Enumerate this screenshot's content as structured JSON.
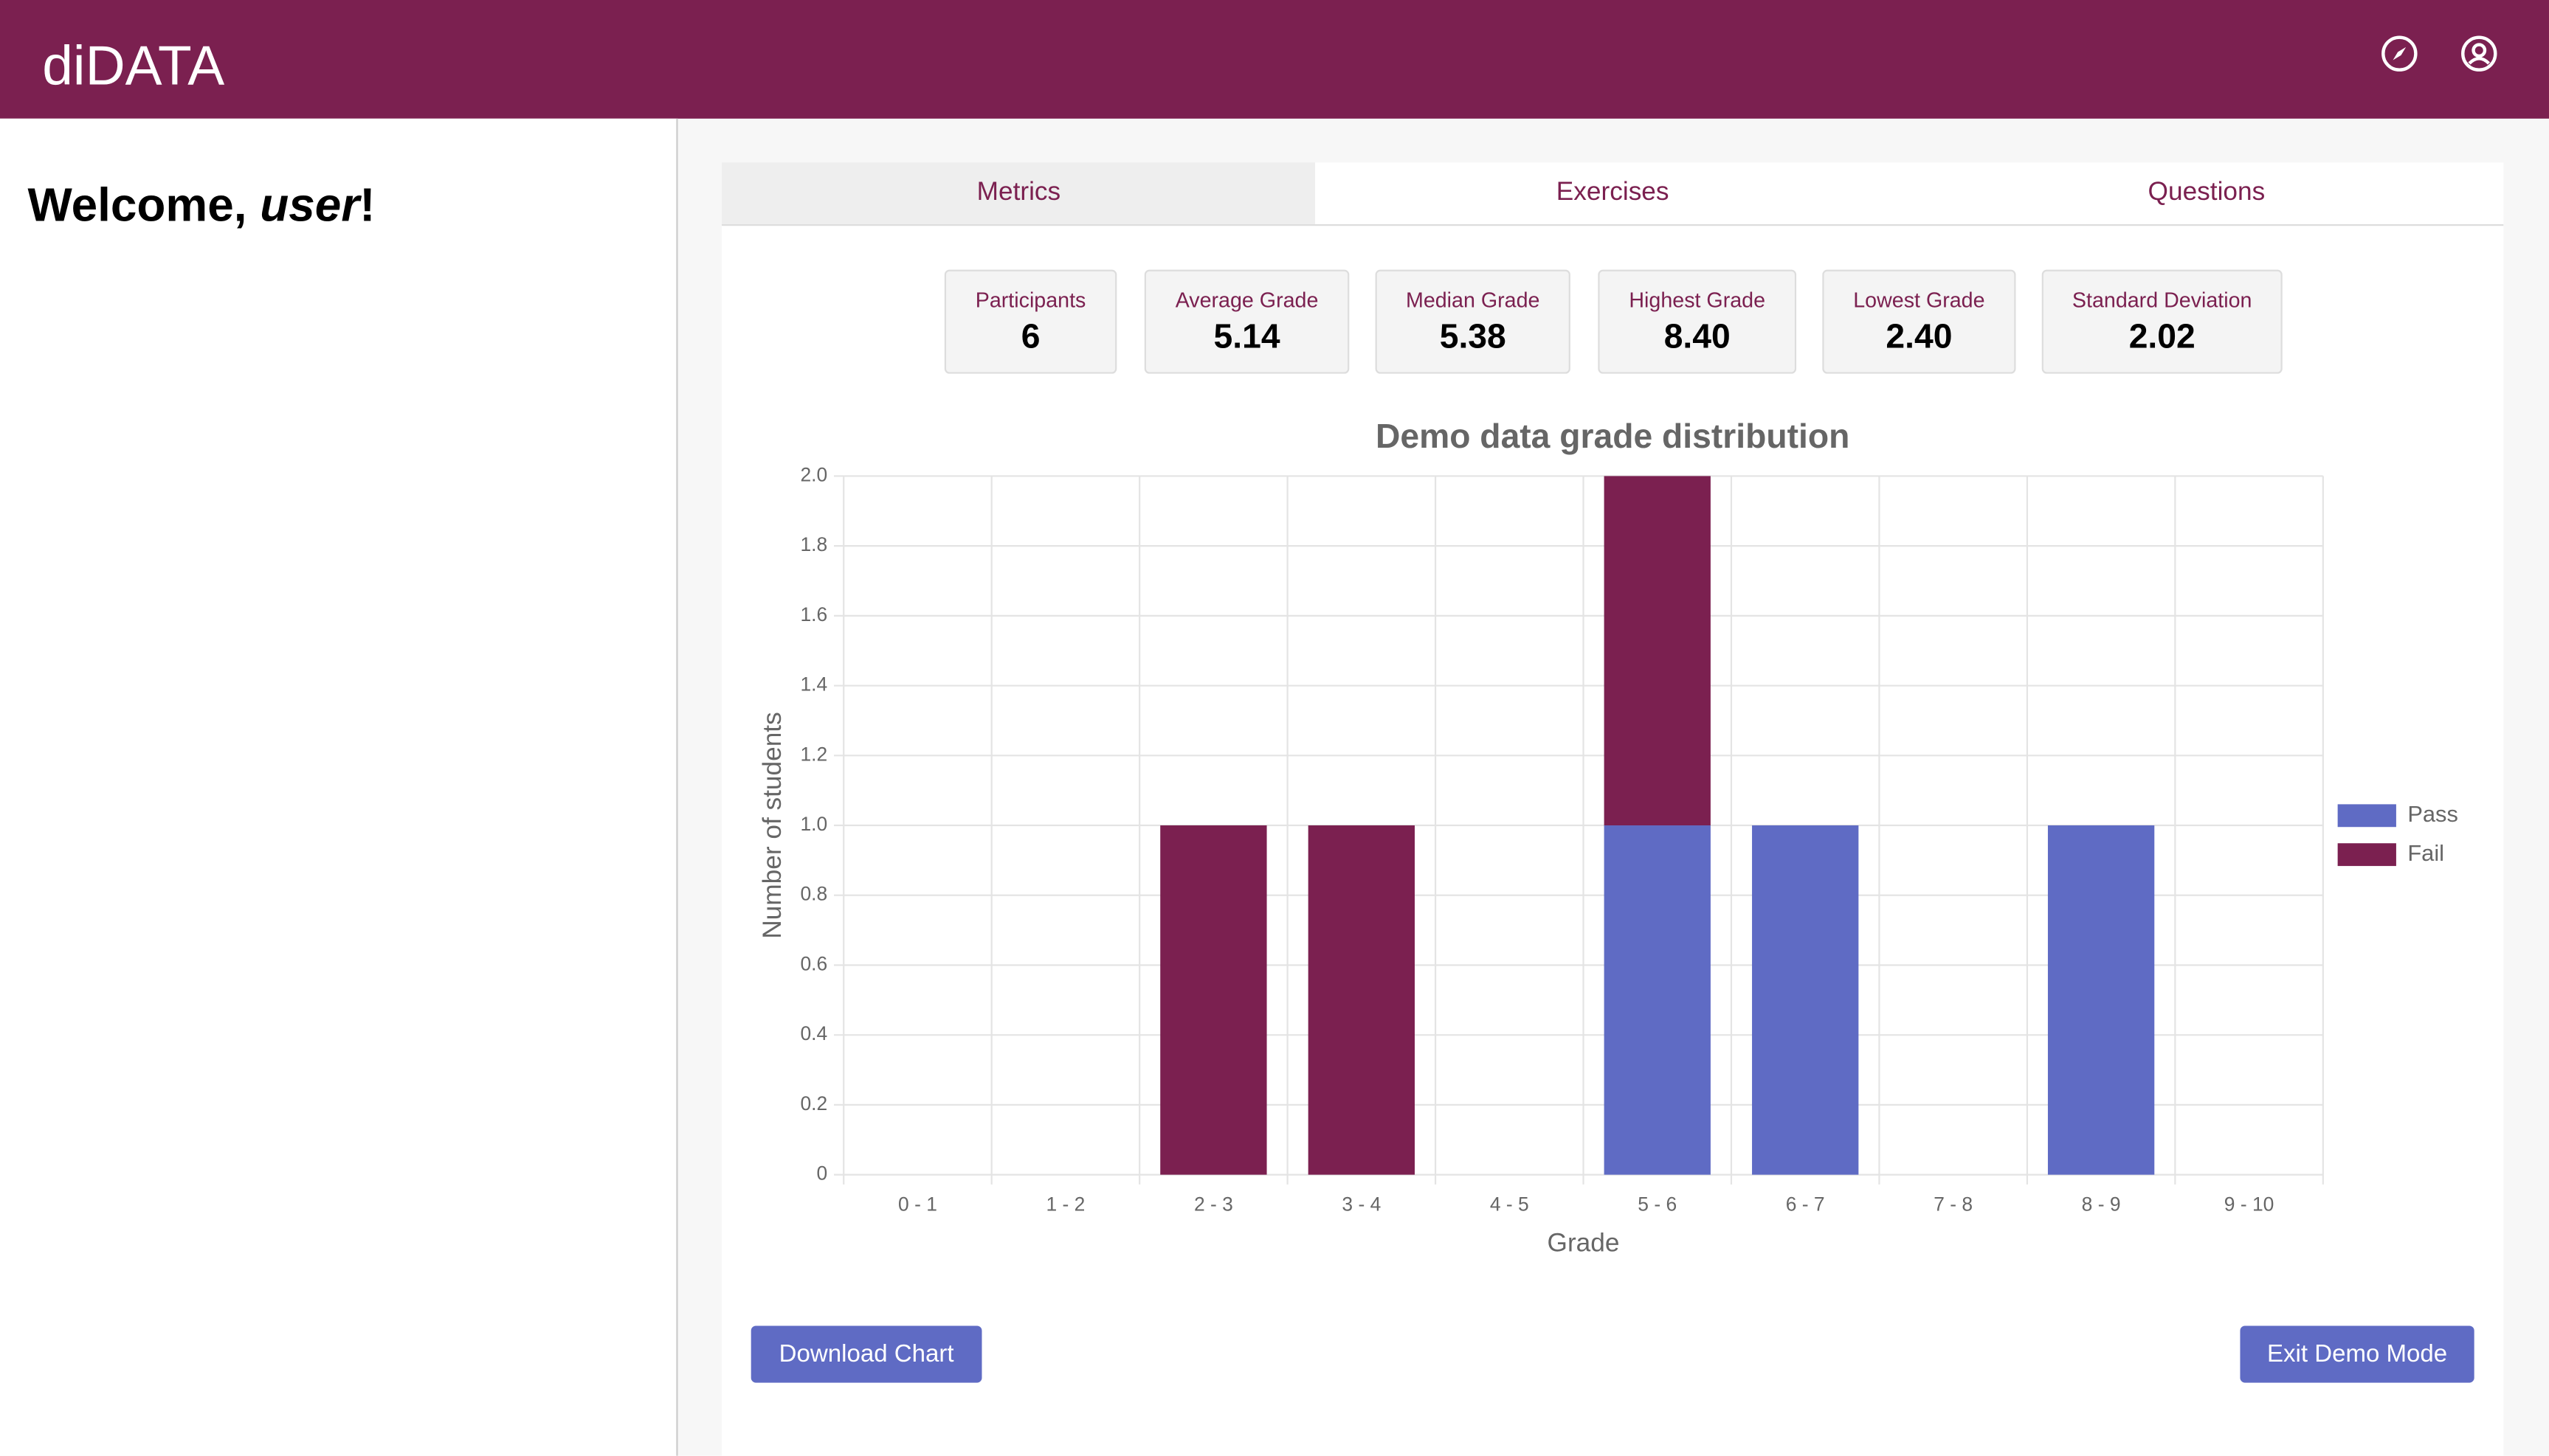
{
  "header": {
    "logo": "diDATA"
  },
  "welcome": {
    "prefix": "Welcome, ",
    "name": "user",
    "suffix": "!"
  },
  "tabs": [
    "Metrics",
    "Exercises",
    "Questions"
  ],
  "metrics": [
    {
      "label": "Participants",
      "value": "6"
    },
    {
      "label": "Average Grade",
      "value": "5.14"
    },
    {
      "label": "Median Grade",
      "value": "5.38"
    },
    {
      "label": "Highest Grade",
      "value": "8.40"
    },
    {
      "label": "Lowest Grade",
      "value": "2.40"
    },
    {
      "label": "Standard Deviation",
      "value": "2.02"
    }
  ],
  "chart_data": {
    "type": "stacked_bar",
    "title": "Demo data grade distribution",
    "x_label": "Grade",
    "y_label": "Number of students",
    "categories": [
      "0 - 1",
      "1 - 2",
      "2 - 3",
      "3 - 4",
      "4 - 5",
      "5 - 6",
      "6 - 7",
      "7 - 8",
      "8 - 9",
      "9 - 10"
    ],
    "series": [
      {
        "name": "Pass",
        "color": "#5f6bc4",
        "values": [
          0,
          0,
          0,
          0,
          0,
          1,
          1,
          0,
          1,
          0
        ]
      },
      {
        "name": "Fail",
        "color": "#7b2050",
        "values": [
          0,
          0,
          1,
          1,
          0,
          1,
          0,
          0,
          0,
          0
        ]
      }
    ],
    "ylim": [
      0,
      2
    ],
    "yticks": [
      0,
      0.2,
      0.4,
      0.6,
      0.8,
      {
        "value": 1,
        "label": "1.0"
      },
      1.2,
      1.4,
      1.6,
      1.8,
      {
        "value": 2,
        "label": "2.0"
      }
    ],
    "grid": true,
    "legend": "right"
  },
  "buttons": {
    "download": "Download Chart",
    "exit": "Exit Demo Mode"
  }
}
